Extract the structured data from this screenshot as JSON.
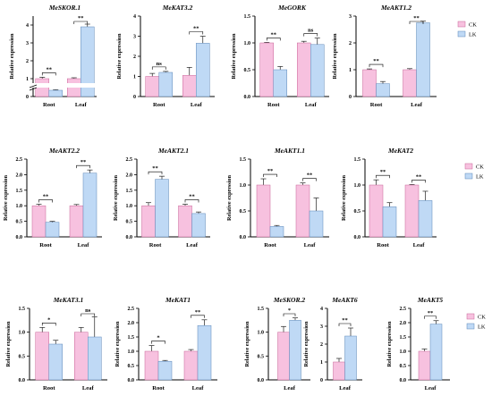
{
  "colors": {
    "ck": "#f7c1df",
    "lk": "#bfd9f5",
    "ck_stroke": "#c86497",
    "lk_stroke": "#5d87b7",
    "error": "#222222"
  },
  "legend": {
    "ck": "CK",
    "lk": "LK"
  },
  "chart_data": [
    {
      "type": "bar",
      "title": "MeSKOR.1",
      "ylabel": "Relative expression",
      "categories": [
        "Root",
        "Leaf"
      ],
      "series": [
        {
          "name": "CK",
          "values": [
            1.0,
            1.0
          ],
          "errors": [
            0.08,
            0.05
          ]
        },
        {
          "name": "LK",
          "values": [
            0.35,
            3.9
          ],
          "errors": [
            0.03,
            0.15
          ]
        }
      ],
      "ylim": [
        0,
        4.5
      ],
      "yticks": [
        "0",
        "1",
        "2",
        "3",
        "4"
      ],
      "axis_break": true,
      "significance": [
        "**",
        "**"
      ]
    },
    {
      "type": "bar",
      "title": "MeKAT3.2",
      "ylabel": "Relative expression",
      "categories": [
        "Root",
        "Leaf"
      ],
      "series": [
        {
          "name": "CK",
          "values": [
            1.0,
            1.05
          ],
          "errors": [
            0.15,
            0.4
          ]
        },
        {
          "name": "LK",
          "values": [
            1.2,
            2.65
          ],
          "errors": [
            0.05,
            0.35
          ]
        }
      ],
      "ylim": [
        0,
        4
      ],
      "yticks": [
        "0",
        "1",
        "2",
        "3",
        "4"
      ],
      "significance": [
        "ns",
        "**"
      ]
    },
    {
      "type": "bar",
      "title": "MeGORK",
      "ylabel": "Relative expression",
      "categories": [
        "Root",
        "Leaf"
      ],
      "series": [
        {
          "name": "CK",
          "values": [
            1.0,
            1.0
          ],
          "errors": [
            0.01,
            0.03
          ]
        },
        {
          "name": "LK",
          "values": [
            0.5,
            0.97
          ],
          "errors": [
            0.06,
            0.12
          ]
        }
      ],
      "ylim": [
        0,
        1.5
      ],
      "yticks": [
        "0.0",
        "0.5",
        "1.0",
        "1.5"
      ],
      "significance": [
        "**",
        "ns"
      ]
    },
    {
      "type": "bar",
      "title": "MeAKT1.2",
      "ylabel": "Relative expression",
      "categories": [
        "Root",
        "Leaf"
      ],
      "series": [
        {
          "name": "CK",
          "values": [
            1.0,
            1.0
          ],
          "errors": [
            0.03,
            0.04
          ]
        },
        {
          "name": "LK",
          "values": [
            0.48,
            2.75
          ],
          "errors": [
            0.08,
            0.06
          ]
        }
      ],
      "ylim": [
        0,
        3
      ],
      "yticks": [
        "0",
        "1",
        "2",
        "3"
      ],
      "significance": [
        "**",
        "**"
      ]
    },
    {
      "type": "bar",
      "title": "MeAKT2.2",
      "ylabel": "Relative expression",
      "categories": [
        "Root",
        "Leaf"
      ],
      "series": [
        {
          "name": "CK",
          "values": [
            1.0,
            1.0
          ],
          "errors": [
            0.05,
            0.04
          ]
        },
        {
          "name": "LK",
          "values": [
            0.47,
            2.05
          ],
          "errors": [
            0.03,
            0.1
          ]
        }
      ],
      "ylim": [
        0,
        2.5
      ],
      "yticks": [
        "0.0",
        "0.5",
        "1.0",
        "1.5",
        "2.0",
        "2.5"
      ],
      "significance": [
        "**",
        "**"
      ]
    },
    {
      "type": "bar",
      "title": "MeAKT2.1",
      "ylabel": "Relative expression",
      "categories": [
        "Root",
        "Leaf"
      ],
      "series": [
        {
          "name": "CK",
          "values": [
            1.0,
            1.0
          ],
          "errors": [
            0.1,
            0.05
          ]
        },
        {
          "name": "LK",
          "values": [
            1.85,
            0.75
          ],
          "errors": [
            0.1,
            0.05
          ]
        }
      ],
      "ylim": [
        0,
        2.5
      ],
      "yticks": [
        "0.0",
        "0.5",
        "1.0",
        "1.5",
        "2.0",
        "2.5"
      ],
      "significance": [
        "**",
        "**"
      ]
    },
    {
      "type": "bar",
      "title": "MeAKT1.1",
      "ylabel": "Relative expression",
      "categories": [
        "Root",
        "Leaf"
      ],
      "series": [
        {
          "name": "CK",
          "values": [
            1.0,
            1.0
          ],
          "errors": [
            0.12,
            0.04
          ]
        },
        {
          "name": "LK",
          "values": [
            0.2,
            0.5
          ],
          "errors": [
            0.02,
            0.25
          ]
        }
      ],
      "ylim": [
        0,
        1.5
      ],
      "yticks": [
        "0.0",
        "0.5",
        "1.0",
        "1.5"
      ],
      "significance": [
        "**",
        "**"
      ]
    },
    {
      "type": "bar",
      "title": "MeKAT2",
      "ylabel": "Relative expression",
      "categories": [
        "Root",
        "Leaf"
      ],
      "series": [
        {
          "name": "CK",
          "values": [
            1.0,
            1.0
          ],
          "errors": [
            0.1,
            0.01
          ]
        },
        {
          "name": "LK",
          "values": [
            0.58,
            0.7
          ],
          "errors": [
            0.08,
            0.18
          ]
        }
      ],
      "ylim": [
        0,
        1.5
      ],
      "yticks": [
        "0.0",
        "0.5",
        "1.0",
        "1.5"
      ],
      "significance": [
        "**",
        "**"
      ]
    },
    {
      "type": "bar",
      "title": "MeKAT3.1",
      "ylabel": "Relative expression",
      "categories": [
        "Root",
        "Leaf"
      ],
      "series": [
        {
          "name": "CK",
          "values": [
            1.0,
            1.0
          ],
          "errors": [
            0.1,
            0.1
          ]
        },
        {
          "name": "LK",
          "values": [
            0.75,
            0.9
          ],
          "errors": [
            0.08,
            0.42
          ]
        }
      ],
      "ylim": [
        0,
        1.5
      ],
      "yticks": [
        "0.0",
        "0.5",
        "1.0",
        "1.5"
      ],
      "significance": [
        "*",
        "ns"
      ]
    },
    {
      "type": "bar",
      "title": "MeKAT1",
      "ylabel": "Relative expression",
      "categories": [
        "Root",
        "Leaf"
      ],
      "series": [
        {
          "name": "CK",
          "values": [
            1.0,
            1.0
          ],
          "errors": [
            0.2,
            0.06
          ]
        },
        {
          "name": "LK",
          "values": [
            0.65,
            1.9
          ],
          "errors": [
            0.03,
            0.2
          ]
        }
      ],
      "ylim": [
        0,
        2.5
      ],
      "yticks": [
        "0.0",
        "0.5",
        "1.0",
        "1.5",
        "2.0",
        "2.5"
      ],
      "significance": [
        "*",
        "**"
      ]
    },
    {
      "type": "bar",
      "title": "MeSKOR.2",
      "ylabel": "Relative expression",
      "categories": [
        "Leaf"
      ],
      "series": [
        {
          "name": "CK",
          "values": [
            1.0
          ],
          "errors": [
            0.12
          ]
        },
        {
          "name": "LK",
          "values": [
            1.25
          ],
          "errors": [
            0.05
          ]
        }
      ],
      "ylim": [
        0,
        1.5
      ],
      "yticks": [
        "0.0",
        "0.5",
        "1.0",
        "1.5"
      ],
      "significance": [
        "*"
      ]
    },
    {
      "type": "bar",
      "title": "MeAKT6",
      "ylabel": "Relative expression",
      "categories": [
        "Leaf"
      ],
      "series": [
        {
          "name": "CK",
          "values": [
            1.0
          ],
          "errors": [
            0.2
          ]
        },
        {
          "name": "LK",
          "values": [
            2.45
          ],
          "errors": [
            0.45
          ]
        }
      ],
      "ylim": [
        0,
        4
      ],
      "yticks": [
        "0",
        "1",
        "2",
        "3",
        "4"
      ],
      "significance": [
        "**"
      ]
    },
    {
      "type": "bar",
      "title": "MeAKT5",
      "ylabel": "Relative expression",
      "categories": [
        "Leaf"
      ],
      "series": [
        {
          "name": "CK",
          "values": [
            1.0
          ],
          "errors": [
            0.08
          ]
        },
        {
          "name": "LK",
          "values": [
            1.95
          ],
          "errors": [
            0.12
          ]
        }
      ],
      "ylim": [
        0,
        2.5
      ],
      "yticks": [
        "0.0",
        "0.5",
        "1.0",
        "1.5",
        "2.0",
        "2.5"
      ],
      "significance": [
        "**"
      ]
    }
  ]
}
